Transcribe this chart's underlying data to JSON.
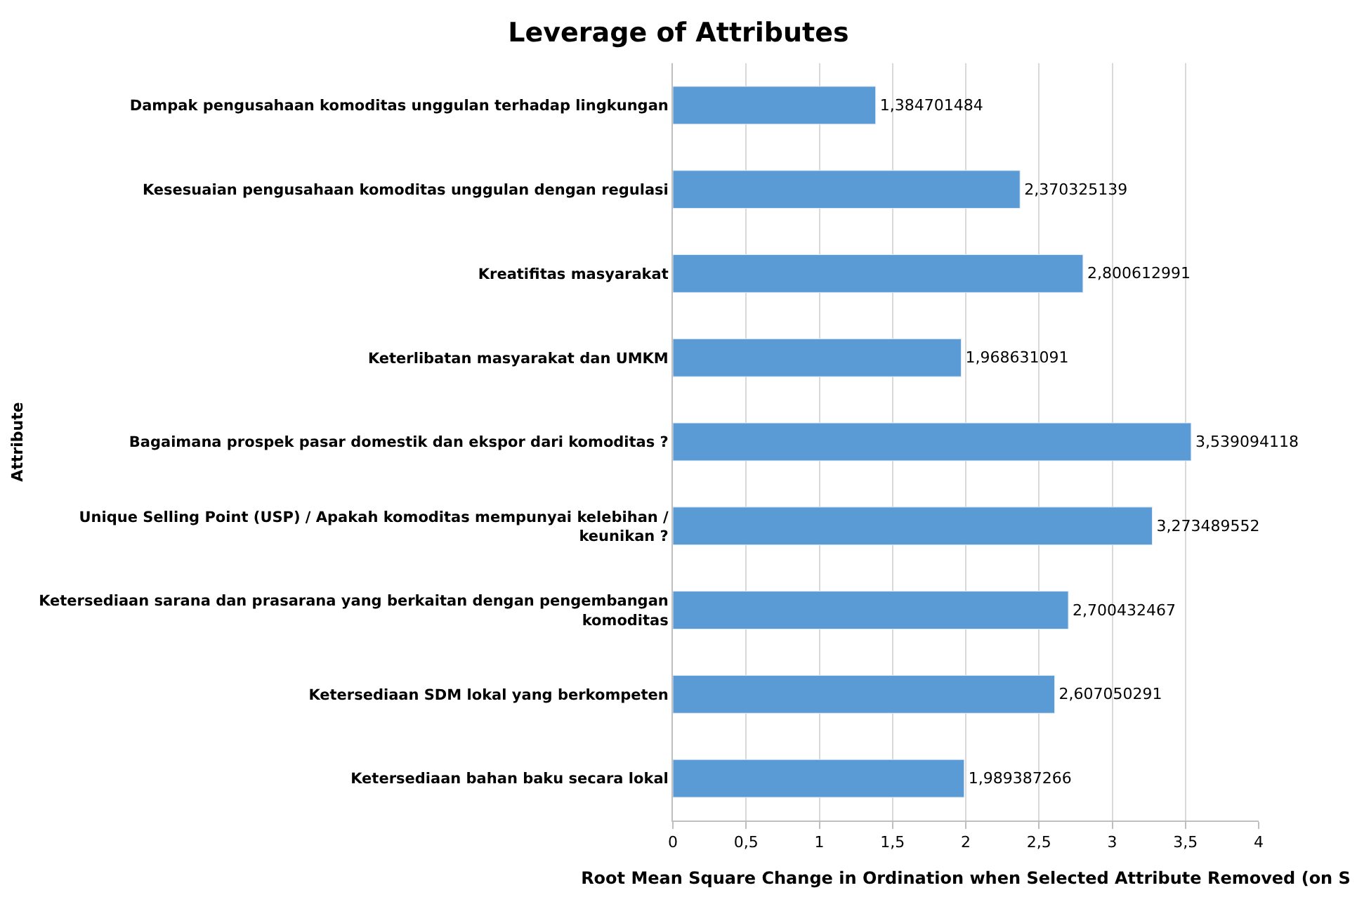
{
  "chart_data": {
    "type": "bar",
    "orientation": "horizontal",
    "title": "Leverage of Attributes",
    "xlabel": "Root Mean Square Change in Ordination when Selected Attribute Removed (on S",
    "ylabel": "Attribute",
    "categories": [
      "Dampak pengusahaan komoditas unggulan terhadap lingkungan",
      "Kesesuaian pengusahaan komoditas unggulan dengan regulasi",
      "Kreatifitas masyarakat",
      "Keterlibatan masyarakat dan UMKM",
      "Bagaimana prospek pasar domestik dan ekspor dari komoditas ?",
      "Unique Selling Point (USP) / Apakah komoditas mempunyai kelebihan / keunikan ?",
      "Ketersediaan sarana dan prasarana yang berkaitan dengan pengembangan komoditas",
      "Ketersediaan SDM lokal yang berkompeten",
      "Ketersediaan bahan baku secara lokal"
    ],
    "values": [
      1.384701484,
      2.370325139,
      2.800612991,
      1.968631091,
      3.539094118,
      3.273489552,
      2.700432467,
      2.607050291,
      1.989387266
    ],
    "value_labels": [
      "1,384701484",
      "2,370325139",
      "2,800612991",
      "1,968631091",
      "3,539094118",
      "3,273489552",
      "2,700432467",
      "2,607050291",
      "1,989387266"
    ],
    "color": "#5b9bd5",
    "xlim": [
      0,
      4
    ],
    "xticks": [
      0,
      {
        "value": 0.5,
        "label": "0,5"
      },
      1,
      {
        "value": 1.5,
        "label": "1,5"
      },
      2,
      {
        "value": 2.5,
        "label": "2,5"
      },
      3,
      {
        "value": 3.5,
        "label": "3,5"
      },
      4
    ],
    "grid": "x"
  }
}
